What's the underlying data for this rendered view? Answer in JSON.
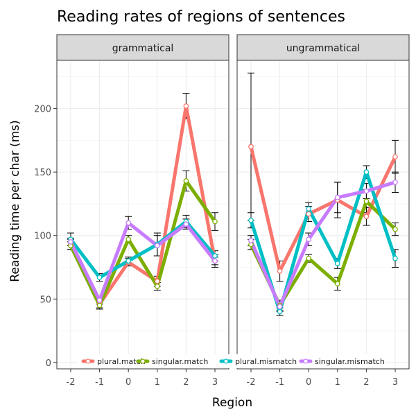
{
  "chart_data": {
    "type": "line",
    "title": "Reading rates of regions of sentences",
    "xlabel": "Region",
    "ylabel": "Reading time per char (ms)",
    "x": [
      "-2",
      "-1",
      "0",
      "1",
      "2",
      "3"
    ],
    "ylim": [
      -5,
      238
    ],
    "yticks": [
      0,
      50,
      100,
      150,
      200
    ],
    "grid": true,
    "legend_position": "bottom-inside",
    "colors": {
      "plural.match": "#F8766D",
      "singular.match": "#7CAE00",
      "plural.mismatch": "#00BFC4",
      "singular.mismatch": "#C77CFF"
    },
    "legend": [
      "plural.match",
      "singular.match",
      "plural.mismatch",
      "singular.mismatch"
    ],
    "panels": [
      {
        "label": "grammatical",
        "series": [
          {
            "name": "plural.match",
            "values": [
              93,
              46,
              79,
              64,
              202,
              80
            ],
            "errors": [
              4,
              3,
              3,
              4,
              10,
              5
            ]
          },
          {
            "name": "singular.match",
            "values": [
              92,
              45,
              97,
              60,
              143,
              111
            ],
            "errors": [
              3,
              3,
              3,
              3,
              8,
              7
            ]
          },
          {
            "name": "plural.mismatch",
            "values": [
              97,
              67,
              80,
              93,
              111,
              84
            ],
            "errors": [
              5,
              3,
              3,
              9,
              5,
              4
            ]
          },
          {
            "name": "singular.mismatch",
            "values": [
              95,
              49,
              110,
              92,
              109,
              80
            ],
            "errors": [
              3,
              3,
              5,
              8,
              4,
              3
            ]
          }
        ]
      },
      {
        "label": "ungrammatical",
        "series": [
          {
            "name": "plural.match",
            "values": [
              170,
              72,
              117,
              128,
              115,
              162
            ],
            "errors": [
              58,
              8,
              6,
              14,
              7,
              13
            ]
          },
          {
            "name": "singular.match",
            "values": [
              93,
              45,
              82,
              62,
              127,
              105
            ],
            "errors": [
              4,
              4,
              3,
              5,
              9,
              5
            ]
          },
          {
            "name": "plural.mismatch",
            "values": [
              112,
              40,
              121,
              78,
              150,
              82
            ],
            "errors": [
              6,
              3,
              5,
              4,
              5,
              7
            ]
          },
          {
            "name": "singular.mismatch",
            "values": [
              96,
              44,
              97,
              130,
              135,
              142
            ],
            "errors": [
              4,
              4,
              5,
              12,
              6,
              8
            ]
          }
        ]
      }
    ]
  }
}
